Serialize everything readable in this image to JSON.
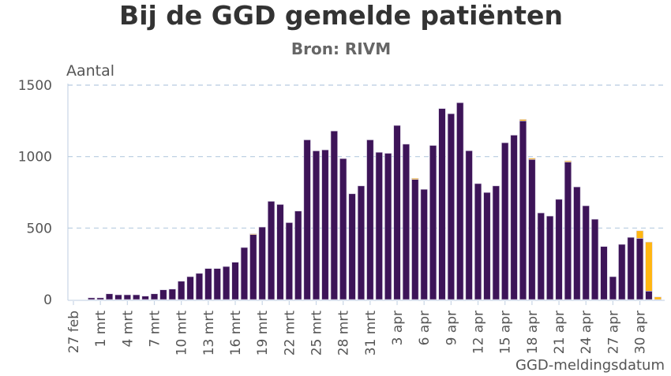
{
  "chart_data": {
    "type": "bar",
    "stacked": true,
    "title": "Bij de GGD gemelde patiënten",
    "subtitle": "Bron: RIVM",
    "ylabel": "Aantal",
    "xlabel": "GGD-meldingsdatum",
    "ylim": [
      0,
      1500
    ],
    "y_ticks": [
      "0",
      "500",
      "1000",
      "1500"
    ],
    "grid": "horizontal dashed",
    "legend": "none",
    "x_ticks": [
      "27 feb",
      "1 mrt",
      "4 mrt",
      "7 mrt",
      "10 mrt",
      "13 mrt",
      "16 mrt",
      "19 mrt",
      "22 mrt",
      "25 mrt",
      "28 mrt",
      "31 mrt",
      "3 apr",
      "6 apr",
      "9 apr",
      "12 apr",
      "15 apr",
      "18 apr",
      "21 apr",
      "24 apr",
      "27 apr",
      "30 apr"
    ],
    "categories": [
      "29 feb",
      "1 mrt",
      "2 mrt",
      "3 mrt",
      "4 mrt",
      "5 mrt",
      "6 mrt",
      "7 mrt",
      "8 mrt",
      "9 mrt",
      "10 mrt",
      "11 mrt",
      "12 mrt",
      "13 mrt",
      "14 mrt",
      "15 mrt",
      "16 mrt",
      "17 mrt",
      "18 mrt",
      "19 mrt",
      "20 mrt",
      "21 mrt",
      "22 mrt",
      "23 mrt",
      "24 mrt",
      "25 mrt",
      "26 mrt",
      "27 mrt",
      "28 mrt",
      "29 mrt",
      "30 mrt",
      "31 mrt",
      "1 apr",
      "2 apr",
      "3 apr",
      "4 apr",
      "5 apr",
      "6 apr",
      "7 apr",
      "8 apr",
      "9 apr",
      "10 apr",
      "11 apr",
      "12 apr",
      "13 apr",
      "14 apr",
      "15 apr",
      "16 apr",
      "17 apr",
      "18 apr",
      "19 apr",
      "20 apr",
      "21 apr",
      "22 apr",
      "23 apr",
      "24 apr",
      "25 apr",
      "26 apr",
      "27 apr",
      "28 apr",
      "29 apr",
      "30 apr",
      "1 mei",
      "2 mei"
    ],
    "series": [
      {
        "color": "#3d1458",
        "values": [
          12,
          12,
          40,
          33,
          33,
          33,
          24,
          40,
          68,
          73,
          128,
          160,
          183,
          217,
          217,
          231,
          261,
          364,
          456,
          507,
          687,
          665,
          538,
          619,
          1117,
          1040,
          1047,
          1179,
          986,
          740,
          795,
          1117,
          1030,
          1023,
          1218,
          1087,
          840,
          771,
          1078,
          1336,
          1300,
          1377,
          1041,
          811,
          749,
          795,
          1097,
          1150,
          1250,
          980,
          606,
          584,
          701,
          962,
          788,
          656,
          562,
          371,
          160,
          386,
          435,
          428,
          59,
          0
        ]
      },
      {
        "color": "#ffb612",
        "values": [
          0,
          0,
          0,
          0,
          0,
          0,
          0,
          0,
          0,
          0,
          0,
          0,
          0,
          0,
          0,
          0,
          0,
          0,
          4,
          0,
          0,
          0,
          0,
          0,
          0,
          0,
          0,
          0,
          0,
          0,
          0,
          0,
          0,
          0,
          0,
          0,
          8,
          0,
          0,
          0,
          0,
          0,
          0,
          0,
          0,
          0,
          0,
          0,
          10,
          8,
          0,
          0,
          0,
          8,
          0,
          0,
          0,
          0,
          0,
          0,
          0,
          53,
          343,
          18
        ]
      }
    ]
  }
}
